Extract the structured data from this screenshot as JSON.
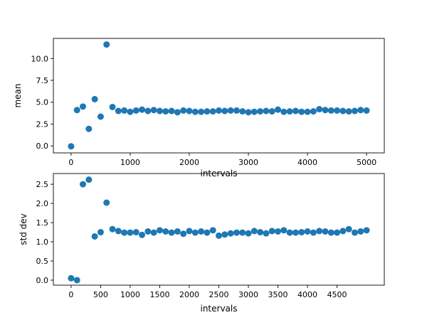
{
  "chart_data": [
    {
      "type": "scatter",
      "xlabel": "intervals",
      "ylabel": "mean",
      "xlim": [
        -300,
        5300
      ],
      "ylim": [
        -0.8,
        12.3
      ],
      "xticks": [
        0,
        1000,
        2000,
        3000,
        4000,
        5000
      ],
      "xtick_labels": [
        "0",
        "1000",
        "2000",
        "3000",
        "4000",
        "5000"
      ],
      "yticks": [
        0,
        2.5,
        5,
        7.5,
        10
      ],
      "ytick_labels": [
        "0.0",
        "2.5",
        "5.0",
        "7.5",
        "10.0"
      ],
      "grid": false,
      "marker_color": "#1f77b4",
      "x": [
        0,
        100,
        200,
        300,
        400,
        500,
        600,
        700,
        800,
        900,
        1000,
        1100,
        1200,
        1300,
        1400,
        1500,
        1600,
        1700,
        1800,
        1900,
        2000,
        2100,
        2200,
        2300,
        2400,
        2500,
        2600,
        2700,
        2800,
        2900,
        3000,
        3100,
        3200,
        3300,
        3400,
        3500,
        3600,
        3700,
        3800,
        3900,
        4000,
        4100,
        4200,
        4300,
        4400,
        4500,
        4600,
        4700,
        4800,
        4900,
        5000
      ],
      "y": [
        -0.05,
        4.1,
        4.5,
        1.95,
        5.35,
        3.35,
        11.6,
        4.45,
        4.0,
        4.05,
        3.9,
        4.05,
        4.15,
        4.0,
        4.1,
        4.0,
        3.95,
        4.0,
        3.85,
        4.05,
        4.0,
        3.9,
        3.9,
        3.95,
        3.95,
        4.05,
        4.0,
        4.05,
        4.05,
        3.95,
        3.85,
        3.9,
        3.95,
        4.0,
        3.95,
        4.15,
        3.9,
        3.95,
        4.0,
        3.9,
        3.9,
        3.95,
        4.2,
        4.1,
        4.05,
        4.05,
        4.0,
        3.95,
        4.0,
        4.1,
        4.05
      ]
    },
    {
      "type": "scatter",
      "xlabel": "intervals",
      "ylabel": "std dev",
      "xlim": [
        -300,
        5300
      ],
      "ylim": [
        -0.13,
        2.78
      ],
      "xticks": [
        0,
        500,
        1000,
        1500,
        2000,
        2500,
        3000,
        3500,
        4000,
        4500
      ],
      "xtick_labels": [
        "0",
        "500",
        "1000",
        "1500",
        "2000",
        "2500",
        "3000",
        "3500",
        "4000",
        "4500"
      ],
      "yticks": [
        0,
        0.5,
        1,
        1.5,
        2,
        2.5
      ],
      "ytick_labels": [
        "0.0",
        "0.5",
        "1.0",
        "1.5",
        "2.0",
        "2.5"
      ],
      "grid": false,
      "marker_color": "#1f77b4",
      "x": [
        0,
        100,
        200,
        300,
        400,
        500,
        600,
        700,
        800,
        900,
        1000,
        1100,
        1200,
        1300,
        1400,
        1500,
        1600,
        1700,
        1800,
        1900,
        2000,
        2100,
        2200,
        2300,
        2400,
        2500,
        2600,
        2700,
        2800,
        2900,
        3000,
        3100,
        3200,
        3300,
        3400,
        3500,
        3600,
        3700,
        3800,
        3900,
        4000,
        4100,
        4200,
        4300,
        4400,
        4500,
        4600,
        4700,
        4800,
        4900,
        5000
      ],
      "y": [
        0.05,
        0.0,
        2.5,
        2.62,
        1.14,
        1.25,
        2.02,
        1.33,
        1.28,
        1.24,
        1.24,
        1.25,
        1.18,
        1.27,
        1.24,
        1.3,
        1.27,
        1.24,
        1.27,
        1.21,
        1.28,
        1.24,
        1.27,
        1.24,
        1.3,
        1.16,
        1.19,
        1.22,
        1.24,
        1.24,
        1.22,
        1.28,
        1.25,
        1.22,
        1.28,
        1.27,
        1.3,
        1.24,
        1.24,
        1.25,
        1.27,
        1.24,
        1.28,
        1.27,
        1.24,
        1.24,
        1.28,
        1.33,
        1.24,
        1.27,
        1.3
      ]
    }
  ]
}
